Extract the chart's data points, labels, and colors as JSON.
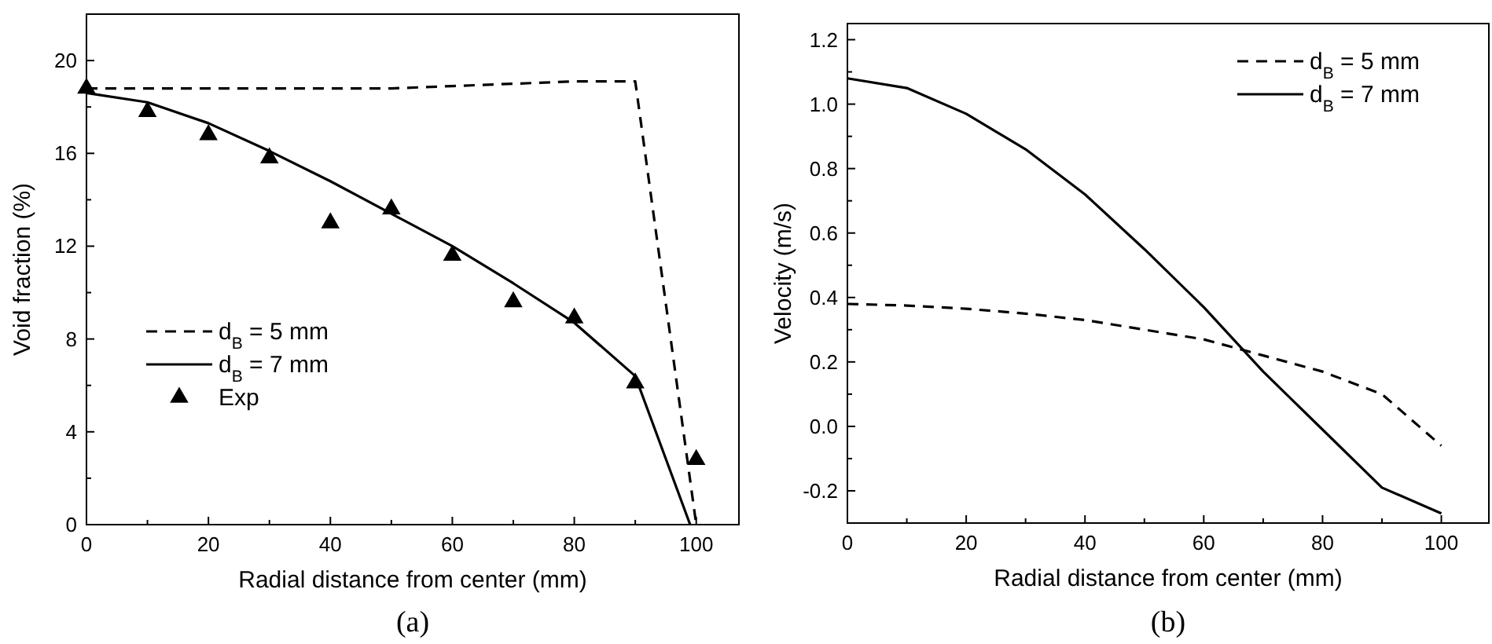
{
  "chart_data": [
    {
      "type": "line",
      "xlabel": "Radial distance from center (mm)",
      "ylabel": "Void fraction (%)",
      "annotations": [
        "(a)"
      ],
      "legend": "bottom left",
      "grid": false,
      "xlim": [
        0,
        107
      ],
      "ylim": [
        0,
        22
      ],
      "xticks": [
        0,
        {
          "value": 10,
          "label": null
        },
        20,
        {
          "value": 30,
          "label": null
        },
        40,
        {
          "value": 50,
          "label": null
        },
        60,
        {
          "value": 70,
          "label": null
        },
        80,
        {
          "value": 90,
          "label": null
        },
        100
      ],
      "yticks": [
        0,
        {
          "value": 2,
          "label": null
        },
        4,
        {
          "value": 6,
          "label": null
        },
        8,
        {
          "value": 10,
          "label": null
        },
        12,
        {
          "value": 14,
          "label": null
        },
        16,
        {
          "value": 18,
          "label": null
        },
        20
      ],
      "series": [
        {
          "name": "d$_{B}$ = 5 mm",
          "line_style": "dashed",
          "marker": "none",
          "color": "#000000",
          "x": [
            0,
            10,
            20,
            30,
            40,
            50,
            60,
            70,
            80,
            90,
            100
          ],
          "values": [
            18.8,
            18.8,
            18.8,
            18.8,
            18.8,
            18.8,
            18.9,
            19.0,
            19.1,
            19.1,
            0
          ]
        },
        {
          "name": "d$_{B}$ = 7 mm",
          "line_style": "solid",
          "marker": "none",
          "color": "#000000",
          "x": [
            0,
            10,
            20,
            30,
            40,
            50,
            60,
            70,
            80,
            90,
            99
          ],
          "values": [
            18.6,
            18.2,
            17.3,
            16.1,
            14.8,
            13.4,
            12.0,
            10.4,
            8.7,
            6.4,
            0
          ]
        },
        {
          "name": "Exp",
          "type": "scatter",
          "marker": "triangle",
          "color": "#000000",
          "x": [
            0,
            10,
            20,
            30,
            40,
            50,
            60,
            70,
            80,
            90,
            100
          ],
          "values": [
            18.8,
            17.8,
            16.8,
            15.8,
            13.0,
            13.6,
            11.6,
            9.6,
            8.9,
            6.1,
            2.8
          ]
        }
      ]
    },
    {
      "type": "line",
      "xlabel": "Radial distance from center (mm)",
      "ylabel": "Velocity (m/s)",
      "annotations": [
        "(b)"
      ],
      "legend": "top right",
      "grid": false,
      "xlim": [
        0,
        108
      ],
      "ylim": [
        -0.3,
        1.25
      ],
      "xticks": [
        0,
        {
          "value": 10,
          "label": null
        },
        20,
        {
          "value": 30,
          "label": null
        },
        40,
        {
          "value": 50,
          "label": null
        },
        60,
        {
          "value": 70,
          "label": null
        },
        80,
        {
          "value": 90,
          "label": null
        },
        100
      ],
      "yticks": [
        {
          "value": -0.2,
          "label": "-0.2"
        },
        {
          "value": -0.1,
          "label": null
        },
        {
          "value": 0,
          "label": "0.0"
        },
        {
          "value": 0.1,
          "label": null
        },
        {
          "value": 0.2,
          "label": "0.2"
        },
        {
          "value": 0.3,
          "label": null
        },
        {
          "value": 0.4,
          "label": "0.4"
        },
        {
          "value": 0.5,
          "label": null
        },
        {
          "value": 0.6,
          "label": "0.6"
        },
        {
          "value": 0.7,
          "label": null
        },
        {
          "value": 0.8,
          "label": "0.8"
        },
        {
          "value": 0.9,
          "label": null
        },
        {
          "value": 1.0,
          "label": "1.0"
        },
        {
          "value": 1.1,
          "label": null
        },
        {
          "value": 1.2,
          "label": "1.2"
        }
      ],
      "series": [
        {
          "name": "d$_{B}$ = 5 mm",
          "line_style": "dashed",
          "marker": "none",
          "color": "#000000",
          "x": [
            0,
            10,
            20,
            30,
            40,
            50,
            60,
            70,
            80,
            90,
            100
          ],
          "values": [
            0.38,
            0.375,
            0.365,
            0.35,
            0.33,
            0.3,
            0.27,
            0.22,
            0.17,
            0.1,
            -0.06
          ]
        },
        {
          "name": "d$_{B}$ = 7 mm",
          "line_style": "solid",
          "marker": "none",
          "color": "#000000",
          "x": [
            0,
            10,
            20,
            30,
            40,
            50,
            60,
            70,
            80,
            90,
            100
          ],
          "values": [
            1.08,
            1.05,
            0.97,
            0.86,
            0.72,
            0.55,
            0.37,
            0.17,
            -0.01,
            -0.19,
            -0.27
          ]
        }
      ]
    }
  ]
}
